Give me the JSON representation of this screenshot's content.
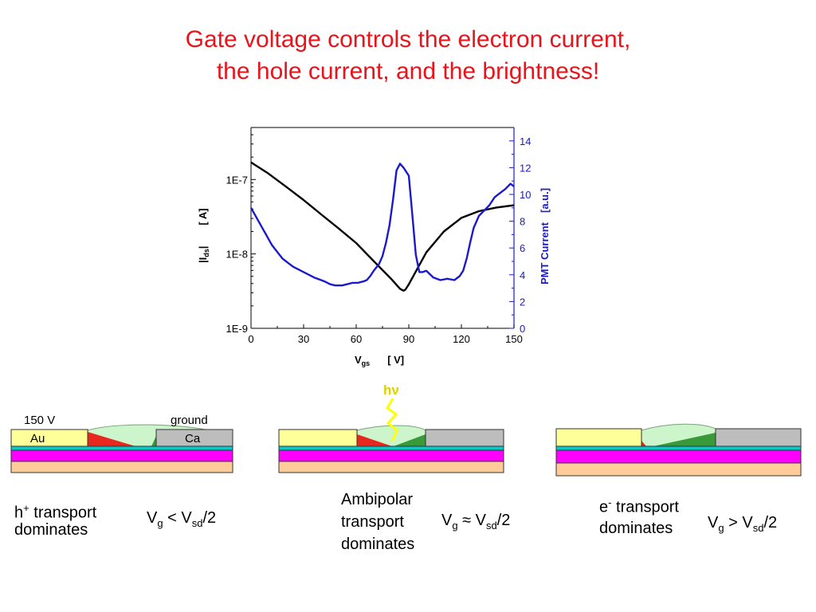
{
  "title": {
    "line1": "Gate voltage controls the electron current,",
    "line2": "the hole current, and the brightness!"
  },
  "chart_data": {
    "type": "line",
    "x_ticks": [
      "0",
      "30",
      "60",
      "90",
      "120",
      "150"
    ],
    "x_range": [
      0,
      150
    ],
    "xlabel": {
      "main": "V",
      "sub": "gs",
      "unit": "[ V]"
    },
    "left_axis": {
      "scale": "log",
      "range": [
        1e-09,
        5e-07
      ],
      "tick_labels": [
        "1E-9",
        "1E-8",
        "1E-7"
      ],
      "tick_values": [
        1e-09,
        1e-08,
        1e-07
      ],
      "label": {
        "main": "I",
        "sub": "ds",
        "unit": "[ A]"
      }
    },
    "right_axis": {
      "scale": "linear",
      "range": [
        0,
        15
      ],
      "tick_labels": [
        "0",
        "2",
        "4",
        "6",
        "8",
        "10",
        "12",
        "14"
      ],
      "tick_values": [
        0,
        2,
        4,
        6,
        8,
        10,
        12,
        14
      ],
      "label": {
        "main": "PMT Current",
        "unit": "[a.u.]"
      },
      "color": "#1a1acc"
    },
    "series": [
      {
        "axis": "left",
        "color": "#000000",
        "x": [
          0,
          10,
          20,
          30,
          40,
          50,
          60,
          70,
          80,
          85,
          87,
          88,
          90,
          95,
          100,
          110,
          120,
          130,
          140,
          150
        ],
        "y": [
          1.7e-07,
          1.2e-07,
          8e-08,
          5.3e-08,
          3.4e-08,
          2.2e-08,
          1.4e-08,
          8e-09,
          4.6e-09,
          3.4e-09,
          3.2e-09,
          3.3e-09,
          3.9e-09,
          6.4e-09,
          1.05e-08,
          2e-08,
          3.05e-08,
          3.75e-08,
          4.2e-08,
          4.5e-08
        ]
      },
      {
        "axis": "right",
        "color": "#1a1acc",
        "x": [
          0,
          3,
          6,
          9,
          12,
          15,
          18,
          21,
          24,
          27,
          30,
          33,
          36,
          40,
          42,
          45,
          48,
          52,
          55,
          58,
          61,
          64,
          66,
          68,
          70,
          73,
          75,
          77,
          79,
          81,
          83,
          85,
          87,
          90,
          92,
          94,
          96,
          98,
          100,
          104,
          108,
          112,
          116,
          119,
          121,
          123,
          125,
          127,
          130,
          133,
          136,
          139,
          142,
          145,
          148,
          150
        ],
        "y": [
          9.0,
          8.3,
          7.6,
          6.9,
          6.2,
          5.7,
          5.2,
          4.9,
          4.6,
          4.4,
          4.2,
          4.0,
          3.8,
          3.6,
          3.5,
          3.3,
          3.2,
          3.2,
          3.3,
          3.4,
          3.4,
          3.5,
          3.6,
          3.9,
          4.3,
          4.8,
          5.4,
          6.4,
          7.7,
          9.6,
          11.8,
          12.3,
          12.0,
          11.4,
          8.5,
          5.5,
          4.2,
          4.2,
          4.3,
          3.8,
          3.6,
          3.7,
          3.6,
          3.9,
          4.3,
          5.2,
          6.4,
          7.5,
          8.4,
          8.8,
          9.2,
          9.8,
          10.1,
          10.4,
          10.8,
          10.6
        ]
      }
    ]
  },
  "diagrams": {
    "left": {
      "source_label": "150 V",
      "drain_label": "ground",
      "source_metal": "Au",
      "drain_metal": "Ca",
      "caption_a": {
        "pre": "h",
        "sup": "+",
        "post": " transport"
      },
      "caption_b": "dominates",
      "condition": {
        "v": "V",
        "vsub": "g",
        "rel": " < V",
        "vsub2": "sd",
        "tail": "/2"
      }
    },
    "middle": {
      "emission_label": "hν",
      "caption_lines": [
        "Ambipolar",
        "transport",
        "dominates"
      ],
      "condition": {
        "v": "V",
        "vsub": "g",
        "rel": " ≈ V",
        "vsub2": "sd",
        "tail": "/2"
      }
    },
    "right": {
      "caption_a": {
        "pre": "e",
        "sup": "-",
        "post": " transport"
      },
      "caption_b": "dominates",
      "condition": {
        "v": "V",
        "vsub": "g",
        "rel": " > V",
        "vsub2": "sd",
        "tail": "/2"
      }
    }
  },
  "colors": {
    "title": "#e8141b",
    "gold": "#ffff99",
    "calcium": "#bdbdbd",
    "hole_region": "#e8281e",
    "electron_region": "#3a9a3a",
    "recombination": "#ccf5cc",
    "semiconductor": "#00cccc",
    "dielectric": "#ff00ff",
    "substrate": "#ffcc99",
    "photon": "#ffff00"
  }
}
